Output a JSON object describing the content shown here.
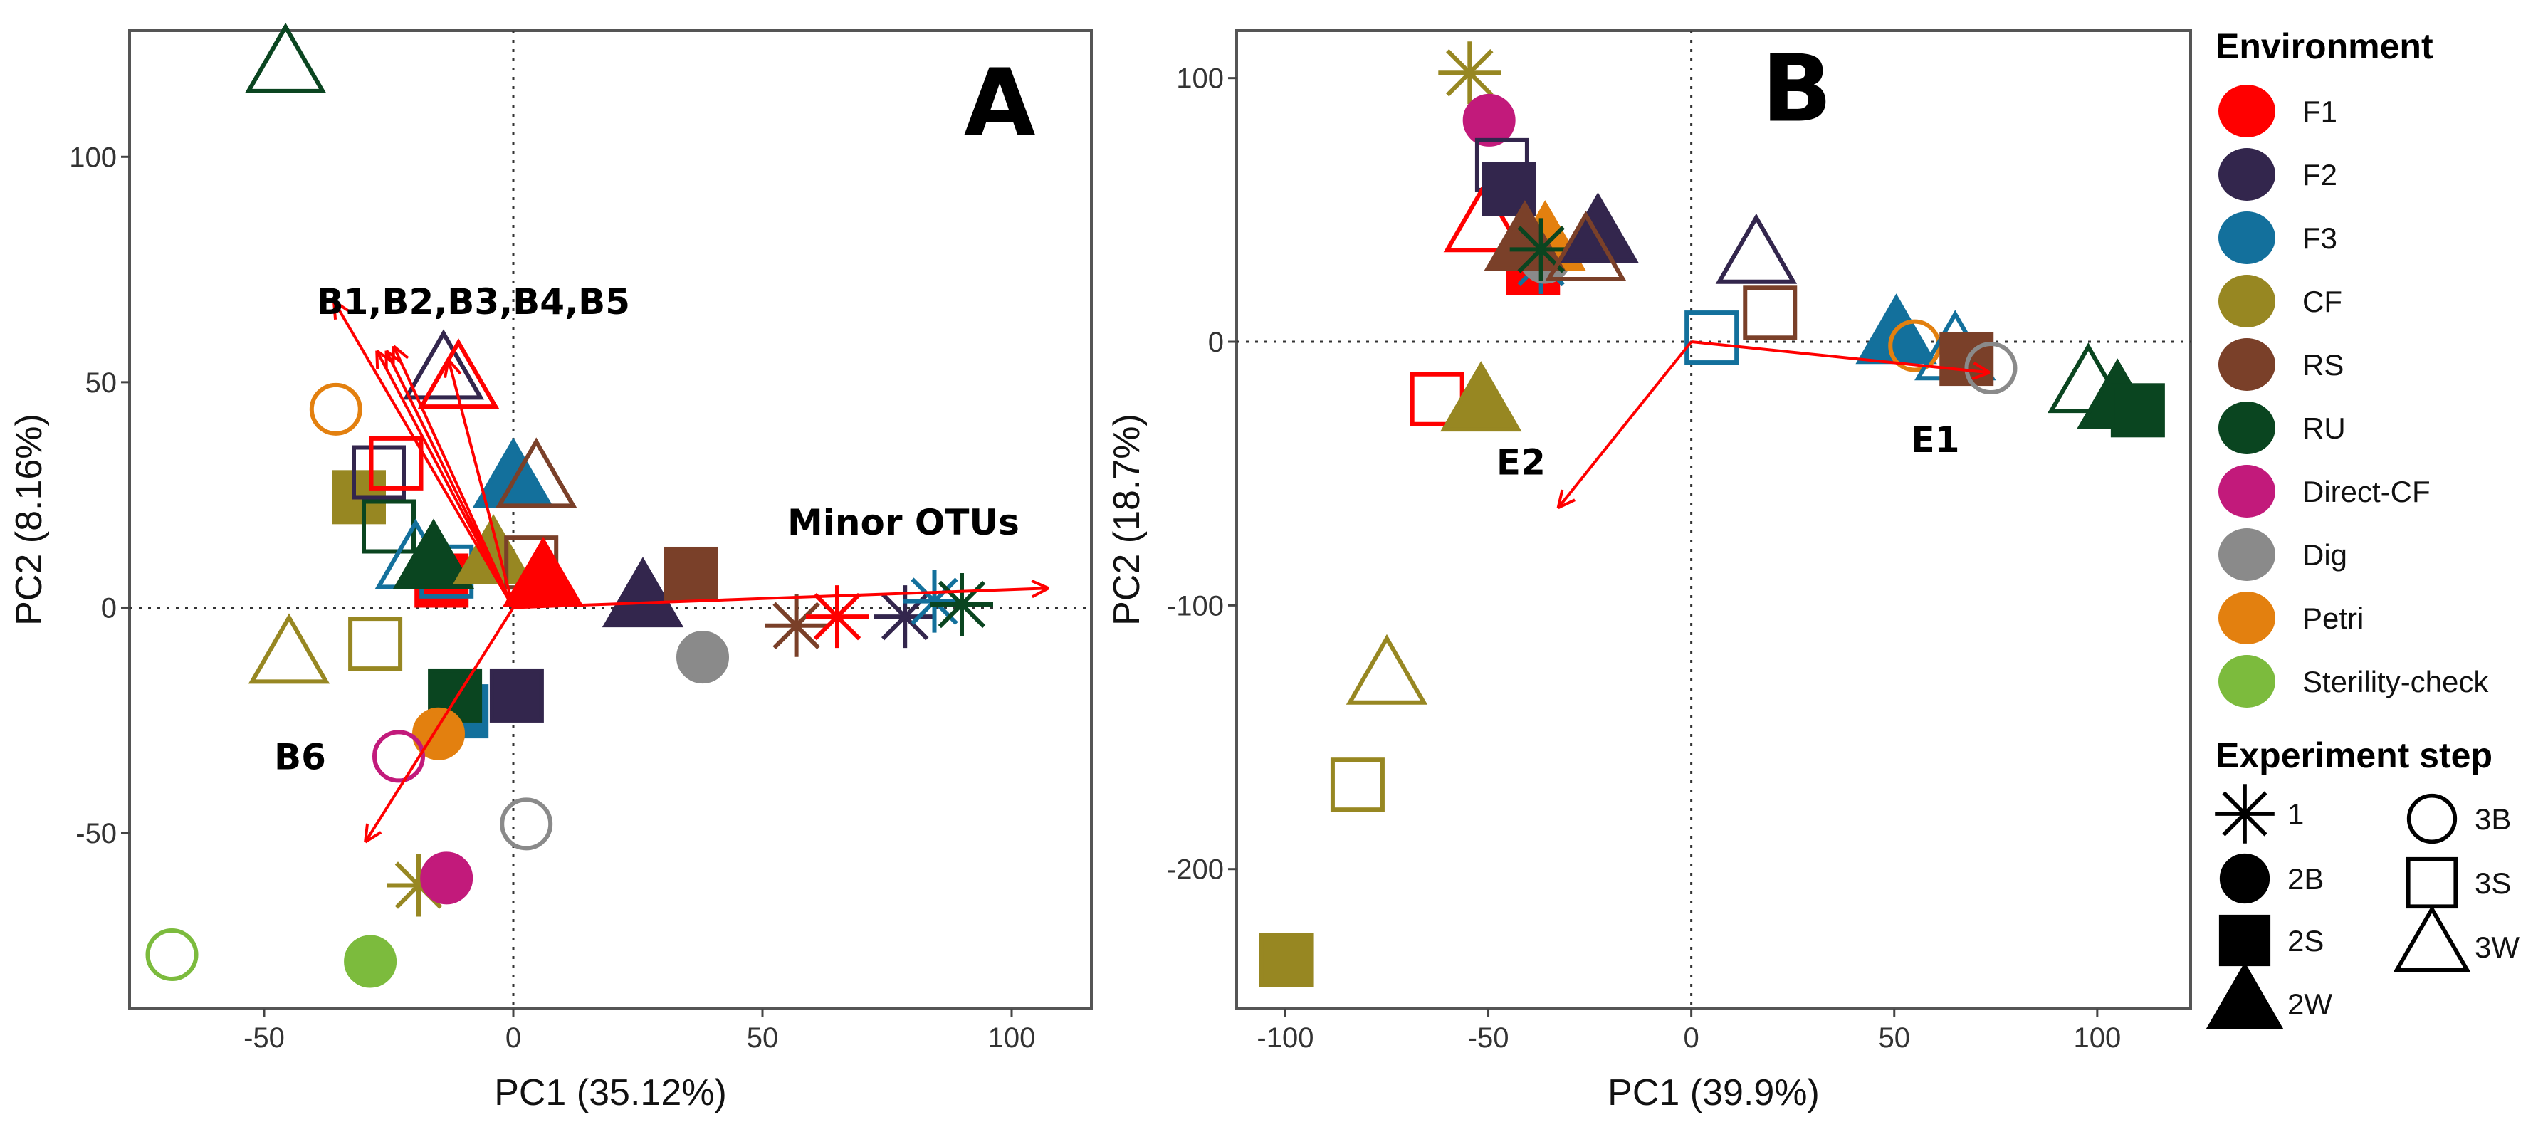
{
  "colors": {
    "F1": "#ff0000",
    "F2": "#33264d",
    "F3": "#13709c",
    "CF": "#978722",
    "RS": "#7a4029",
    "RU": "#0a4520",
    "Direct-CF": "#c21a7b",
    "Dig": "#8a8a8a",
    "Petri": "#e3800f",
    "Sterility-check": "#7cbb3d",
    "arrow": "#ff0000"
  },
  "legend": {
    "environment_title": "Environment",
    "environment": [
      "F1",
      "F2",
      "F3",
      "CF",
      "RS",
      "RU",
      "Direct-CF",
      "Dig",
      "Petri",
      "Sterility-check"
    ],
    "step_title": "Experiment  step",
    "steps": [
      "1",
      "2B",
      "2S",
      "2W",
      "3B",
      "3S",
      "3W"
    ]
  },
  "chart_data": [
    {
      "type": "scatter",
      "panel": "A",
      "xlabel": "PC1 (35.12%)",
      "ylabel": "PC2 (8.16%)",
      "xlim": [
        -77,
        116
      ],
      "ylim": [
        -89,
        128
      ],
      "xticks": [
        -50,
        0,
        50,
        100
      ],
      "yticks": [
        -50,
        0,
        50,
        100
      ],
      "reference_lines": {
        "x": 0,
        "y": 0
      },
      "points": [
        {
          "env": "RU",
          "step": "3W",
          "x": -45.7,
          "y": 120
        },
        {
          "env": "Petri",
          "step": "3B",
          "x": -35.6,
          "y": 44
        },
        {
          "env": "F2",
          "step": "3W",
          "x": -14,
          "y": 52
        },
        {
          "env": "F1",
          "step": "3W",
          "x": -11,
          "y": 50
        },
        {
          "env": "CF",
          "step": "2S",
          "x": -31,
          "y": 24.5
        },
        {
          "env": "F2",
          "step": "3S",
          "x": -27,
          "y": 30
        },
        {
          "env": "F1",
          "step": "3S",
          "x": -23.5,
          "y": 32
        },
        {
          "env": "RU",
          "step": "3S",
          "x": -25,
          "y": 18
        },
        {
          "env": "F3",
          "step": "2W",
          "x": 0,
          "y": 28
        },
        {
          "env": "RS",
          "step": "3W",
          "x": 4.6,
          "y": 28
        },
        {
          "env": "F1",
          "step": "2S",
          "x": -14.4,
          "y": 6
        },
        {
          "env": "F3",
          "step": "3W",
          "x": -19.6,
          "y": 10
        },
        {
          "env": "F3",
          "step": "3S",
          "x": -13.4,
          "y": 8
        },
        {
          "env": "RU",
          "step": "2W",
          "x": -16,
          "y": 10
        },
        {
          "env": "CF",
          "step": "2W",
          "x": -4,
          "y": 11
        },
        {
          "env": "RS",
          "step": "3S",
          "x": 3.6,
          "y": 10
        },
        {
          "env": "F1",
          "step": "2W",
          "x": 6,
          "y": 6
        },
        {
          "env": "F2",
          "step": "2W",
          "x": 26,
          "y": 1.5
        },
        {
          "env": "RS",
          "step": "2S",
          "x": 35.6,
          "y": 7.5
        },
        {
          "env": "Dig",
          "step": "2B",
          "x": 38,
          "y": -11
        },
        {
          "env": "CF",
          "step": "3W",
          "x": -45,
          "y": -11
        },
        {
          "env": "CF",
          "step": "3S",
          "x": -27.7,
          "y": -8
        },
        {
          "env": "F3",
          "step": "2S",
          "x": -10.4,
          "y": -23
        },
        {
          "env": "RU",
          "step": "2S",
          "x": -11.7,
          "y": -19.5
        },
        {
          "env": "F2",
          "step": "2S",
          "x": 0.7,
          "y": -19.5
        },
        {
          "env": "Petri",
          "step": "2B",
          "x": -15,
          "y": -28
        },
        {
          "env": "Direct-CF",
          "step": "3B",
          "x": -23,
          "y": -33
        },
        {
          "env": "Dig",
          "step": "3B",
          "x": 2.6,
          "y": -48
        },
        {
          "env": "CF",
          "step": "1",
          "x": -19,
          "y": -61.6
        },
        {
          "env": "Direct-CF",
          "step": "2B",
          "x": -13.4,
          "y": -60
        },
        {
          "env": "Sterility-check",
          "step": "3B",
          "x": -68.5,
          "y": -77
        },
        {
          "env": "Sterility-check",
          "step": "2B",
          "x": -28.7,
          "y": -78.5
        },
        {
          "env": "RS",
          "step": "1",
          "x": 56.8,
          "y": -4
        },
        {
          "env": "F1",
          "step": "1",
          "x": 65,
          "y": -2
        },
        {
          "env": "F2",
          "step": "1",
          "x": 78.6,
          "y": -2
        },
        {
          "env": "F3",
          "step": "1",
          "x": 84.5,
          "y": 1.4
        },
        {
          "env": "RU",
          "step": "1",
          "x": 90,
          "y": 0.7
        }
      ],
      "loadings": [
        {
          "x": -36,
          "y": 68
        },
        {
          "x": -27.4,
          "y": 57
        },
        {
          "x": -25.5,
          "y": 57
        },
        {
          "x": -24,
          "y": 58
        },
        {
          "x": -13,
          "y": 55
        },
        {
          "x": -29.7,
          "y": -52
        },
        {
          "x": 107.4,
          "y": 4.3
        }
      ],
      "annotations": [
        {
          "text": "B1,B2,B3,B4,B5",
          "x": -39.5,
          "y": 68
        },
        {
          "text": "B6",
          "x": -48,
          "y": -33
        },
        {
          "text": "Minor OTUs",
          "x": 55,
          "y": 19
        }
      ],
      "panel_label": {
        "text": "A",
        "x": 97.6,
        "y": 112
      }
    },
    {
      "type": "scatter",
      "panel": "B",
      "xlabel": "PC1 (39.9%)",
      "ylabel": "PC2 (18.7%)",
      "xlim": [
        -112,
        123
      ],
      "ylim": [
        -253,
        118
      ],
      "xticks": [
        -100,
        -50,
        0,
        50,
        100
      ],
      "yticks": [
        -200,
        -100,
        0,
        100
      ],
      "reference_lines": {
        "x": 0,
        "y": 0
      },
      "points": [
        {
          "env": "CF",
          "step": "1",
          "x": -54.6,
          "y": 102
        },
        {
          "env": "Direct-CF",
          "step": "2B",
          "x": -49.8,
          "y": 84
        },
        {
          "env": "F2",
          "step": "3S",
          "x": -46.6,
          "y": 67
        },
        {
          "env": "F1",
          "step": "3W",
          "x": -51,
          "y": 44
        },
        {
          "env": "F2",
          "step": "2S",
          "x": -45,
          "y": 58
        },
        {
          "env": "F1",
          "step": "2S",
          "x": -39,
          "y": 28
        },
        {
          "env": "F3",
          "step": "1",
          "x": -37,
          "y": 30
        },
        {
          "env": "Dig",
          "step": "2B",
          "x": -36,
          "y": 32
        },
        {
          "env": "Petri",
          "step": "2W",
          "x": -36,
          "y": 37
        },
        {
          "env": "RS",
          "step": "2W",
          "x": -41,
          "y": 37
        },
        {
          "env": "RU",
          "step": "1",
          "x": -37,
          "y": 35
        },
        {
          "env": "F2",
          "step": "2W",
          "x": -23,
          "y": 40
        },
        {
          "env": "RS",
          "step": "3W",
          "x": -26,
          "y": 33
        },
        {
          "env": "F2",
          "step": "3W",
          "x": 16,
          "y": 32
        },
        {
          "env": "RS",
          "step": "3S",
          "x": 19.4,
          "y": 11
        },
        {
          "env": "F3",
          "step": "3S",
          "x": 5,
          "y": 1.6
        },
        {
          "env": "F3",
          "step": "2W",
          "x": 50.5,
          "y": 1.6
        },
        {
          "env": "Petri",
          "step": "3B",
          "x": 55,
          "y": -1.5
        },
        {
          "env": "F3",
          "step": "3W",
          "x": 65,
          "y": -4.6
        },
        {
          "env": "RS",
          "step": "2S",
          "x": 67.8,
          "y": -6.5
        },
        {
          "env": "Dig",
          "step": "3B",
          "x": 73.8,
          "y": -10
        },
        {
          "env": "RU",
          "step": "3W",
          "x": 97.8,
          "y": -17
        },
        {
          "env": "RU",
          "step": "2W",
          "x": 105,
          "y": -23
        },
        {
          "env": "RU",
          "step": "2S",
          "x": 110,
          "y": -26
        },
        {
          "env": "F1",
          "step": "3S",
          "x": -62.6,
          "y": -21.8
        },
        {
          "env": "CF",
          "step": "2W",
          "x": -51.8,
          "y": -24
        },
        {
          "env": "CF",
          "step": "3W",
          "x": -75,
          "y": -127.6
        },
        {
          "env": "CF",
          "step": "3S",
          "x": -82.2,
          "y": -168
        },
        {
          "env": "CF",
          "step": "2S",
          "x": -99.8,
          "y": -234.6
        }
      ],
      "loadings": [
        {
          "x": 73.5,
          "y": -11.7
        },
        {
          "x": -32.8,
          "y": -63
        }
      ],
      "annotations": [
        {
          "text": "E1",
          "x": 54,
          "y": -37
        },
        {
          "text": "E2",
          "x": -48,
          "y": -45.5
        }
      ],
      "panel_label": {
        "text": "B",
        "x": 26,
        "y": 96
      }
    }
  ]
}
